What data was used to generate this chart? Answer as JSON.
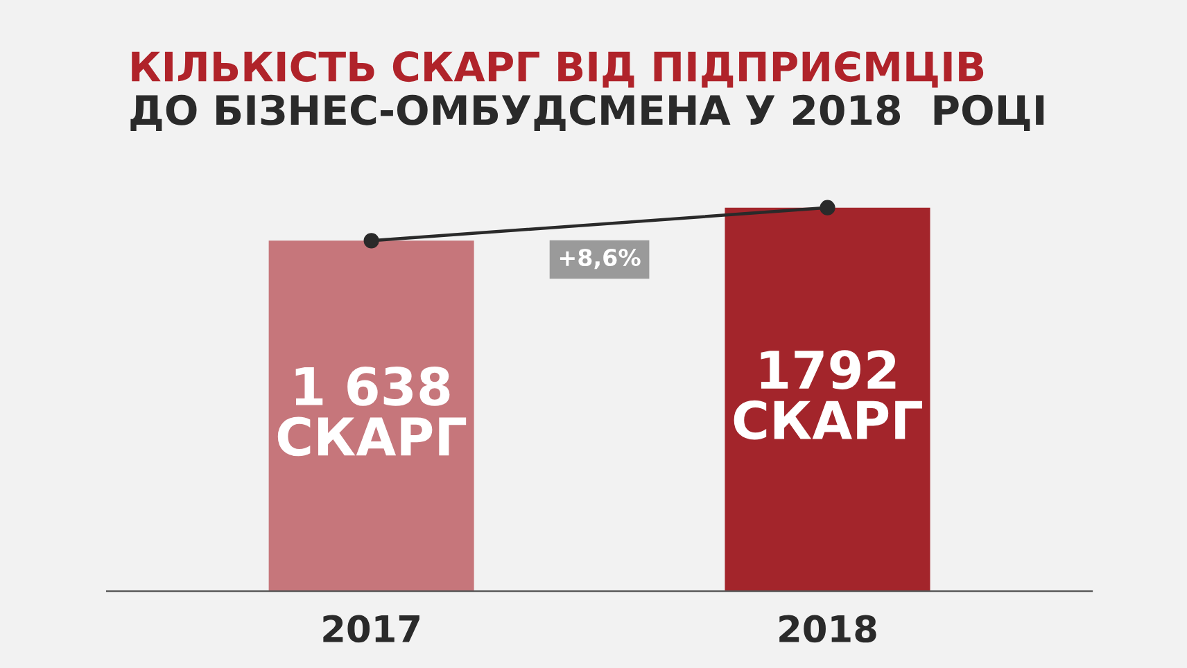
{
  "chart_data": {
    "type": "bar",
    "title": "КІЛЬКІСТЬ СКАРГ ВІД ПІДПРИЄМЦІВ",
    "subtitle": "ДО БІЗНЕС-ОМБУДСМЕНА У 2018  РОЦІ",
    "categories": [
      "2017",
      "2018"
    ],
    "series": [
      {
        "colors": [
          "#c6767b",
          "#a3252b"
        ],
        "values": [
          1638,
          1792
        ],
        "value_labels": [
          "1 638\nСКАРГ",
          "1792\nСКАРГ"
        ]
      },
      {
        "type": "line",
        "color": "#2a2a2a",
        "values": [
          1638,
          1792
        ],
        "marker": "circle"
      }
    ],
    "annotations": [
      "+8,6%"
    ],
    "grid": false
  }
}
